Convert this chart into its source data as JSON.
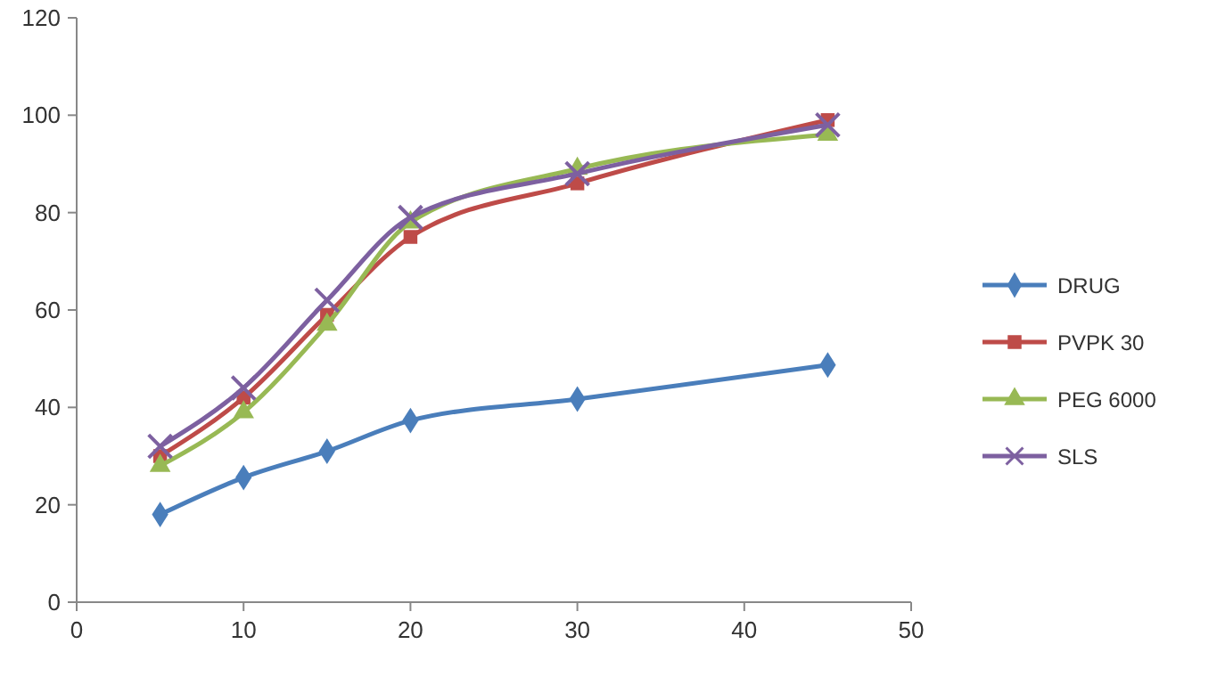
{
  "chart_data": {
    "type": "line",
    "x": [
      5,
      10,
      15,
      20,
      30,
      45
    ],
    "xlim": [
      0,
      50
    ],
    "xticks": [
      0,
      10,
      20,
      30,
      40,
      50
    ],
    "ylim": [
      0,
      120
    ],
    "yticks": [
      0,
      20,
      40,
      60,
      80,
      100,
      120
    ],
    "grid": false,
    "legend": "right",
    "series": [
      {
        "name": "DRUG",
        "color": "#4a7ebb",
        "marker": "diamond",
        "values": [
          18,
          25.6,
          31,
          37.3,
          41.7,
          48.7
        ]
      },
      {
        "name": "PVPK 30",
        "color": "#be4b48",
        "marker": "square",
        "values": [
          30,
          42,
          59,
          75,
          86,
          99
        ]
      },
      {
        "name": "PEG 6000",
        "color": "#98b954",
        "marker": "triangle",
        "values": [
          28,
          39,
          57,
          78,
          89,
          96
        ]
      },
      {
        "name": "SLS",
        "color": "#7d60a0",
        "marker": "cross",
        "values": [
          32,
          44,
          62,
          79,
          88,
          98
        ]
      }
    ]
  }
}
